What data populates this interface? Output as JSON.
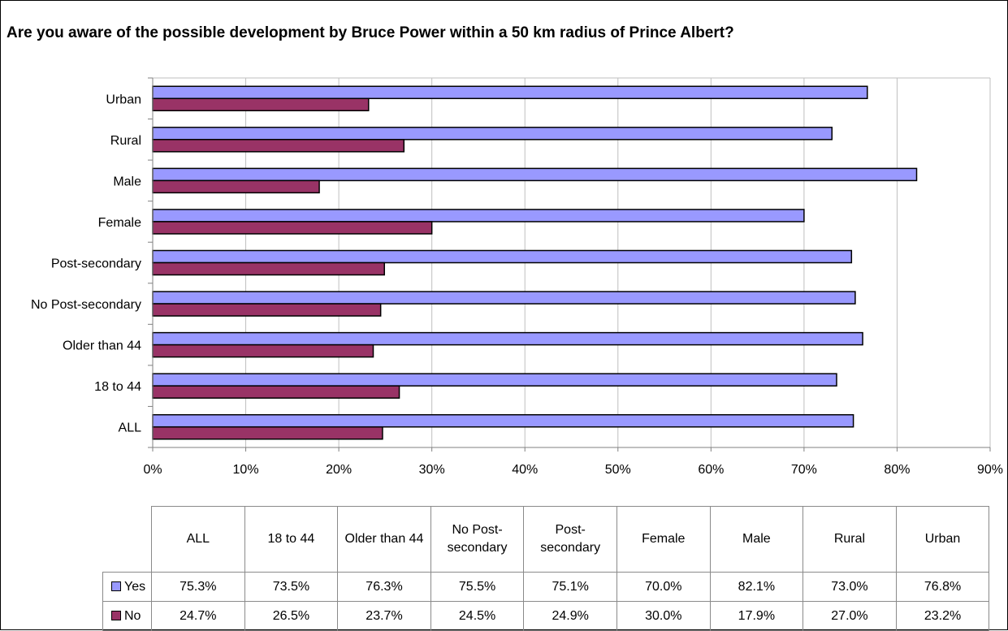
{
  "chart_data": {
    "type": "bar",
    "orientation": "horizontal",
    "title": "Are you aware of the possible development by Bruce Power within a 50 km radius of Prince Albert?",
    "categories": [
      "ALL",
      "18 to 44",
      "Older than 44",
      "No Post-secondary",
      "Post-secondary",
      "Female",
      "Male",
      "Rural",
      "Urban"
    ],
    "series": [
      {
        "name": "Yes",
        "color": "#9999ff",
        "values": [
          75.3,
          73.5,
          76.3,
          75.5,
          75.1,
          70.0,
          82.1,
          73.0,
          76.8
        ]
      },
      {
        "name": "No",
        "color": "#993366",
        "values": [
          24.7,
          26.5,
          23.7,
          24.5,
          24.9,
          30.0,
          17.9,
          27.0,
          23.2
        ]
      }
    ],
    "xlim": [
      0,
      90
    ],
    "xticks": [
      "0%",
      "10%",
      "20%",
      "30%",
      "40%",
      "50%",
      "60%",
      "70%",
      "80%",
      "90%"
    ],
    "grid": true,
    "legend": "data-table",
    "table": {
      "headers": [
        "ALL",
        "18 to 44",
        "Older than 44",
        "No Post-secondary",
        "Post-secondary",
        "Female",
        "Male",
        "Rural",
        "Urban"
      ],
      "rows": [
        {
          "label": "Yes",
          "values": [
            "75.3%",
            "73.5%",
            "76.3%",
            "75.5%",
            "75.1%",
            "70.0%",
            "82.1%",
            "73.0%",
            "76.8%"
          ]
        },
        {
          "label": "No",
          "values": [
            "24.7%",
            "26.5%",
            "23.7%",
            "24.5%",
            "24.9%",
            "30.0%",
            "17.9%",
            "27.0%",
            "23.2%"
          ]
        }
      ]
    }
  }
}
